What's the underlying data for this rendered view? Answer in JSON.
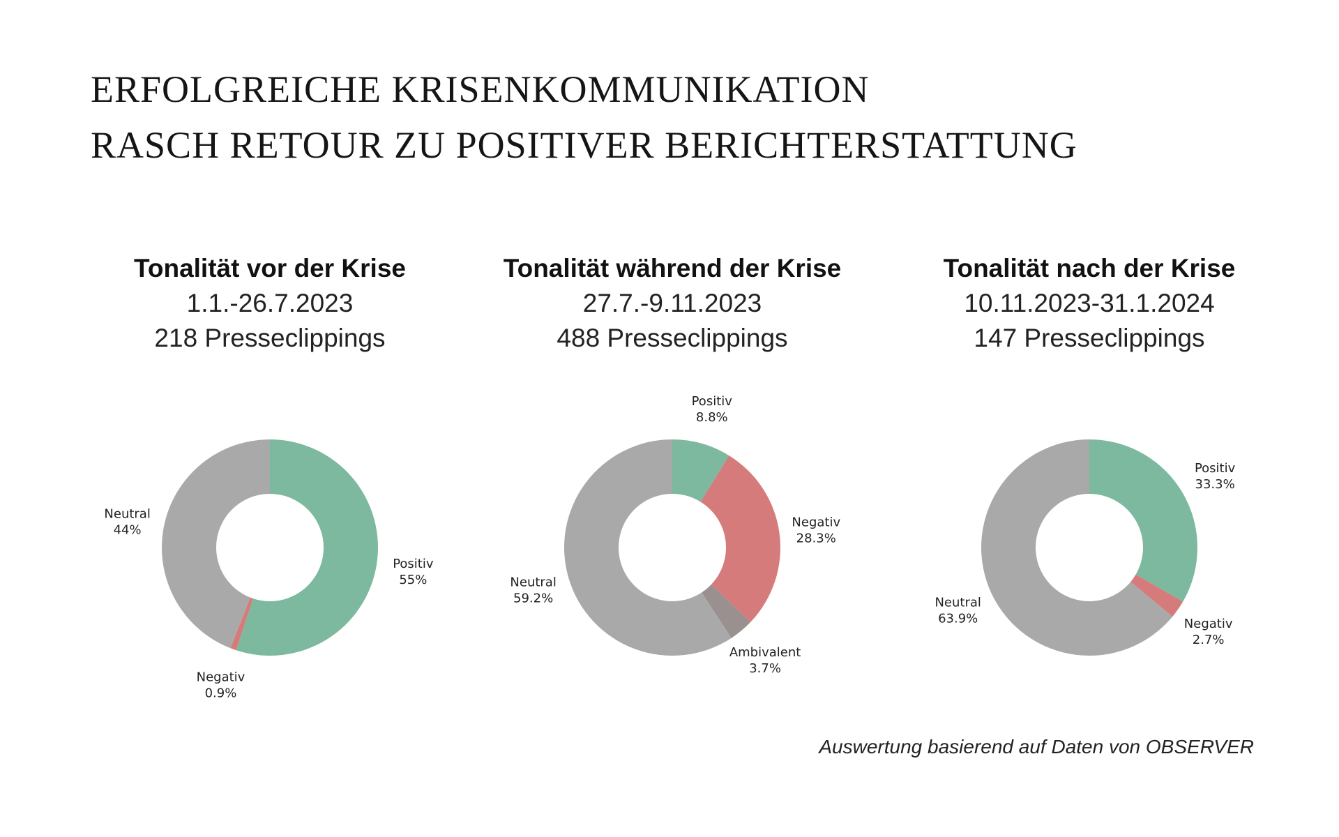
{
  "title": {
    "line1": "ERFOLGREICHE KRISENKOMMUNIKATION",
    "line2": "RASCH RETOUR ZU POSITIVER BERICHTERSTATTUNG"
  },
  "colors": {
    "Positiv": "#7db99e",
    "Negativ": "#d67b7b",
    "Neutral": "#a9a9a9",
    "Ambivalent": "#9a9090"
  },
  "chart_data": [
    {
      "type": "pie",
      "donut": true,
      "title": "Tonalität vor der Krise",
      "period": "1.1.-26.7.2023",
      "count": "218 Presseclippings",
      "slices": [
        {
          "label": "Positiv",
          "value": 55,
          "text": "55%"
        },
        {
          "label": "Negativ",
          "value": 0.9,
          "text": "0.9%"
        },
        {
          "label": "Neutral",
          "value": 44,
          "text": "44%"
        }
      ]
    },
    {
      "type": "pie",
      "donut": true,
      "title": "Tonalität während der Krise",
      "period": "27.7.-9.11.2023",
      "count": "488 Presseclippings",
      "slices": [
        {
          "label": "Positiv",
          "value": 8.8,
          "text": "8.8%"
        },
        {
          "label": "Negativ",
          "value": 28.3,
          "text": "28.3%"
        },
        {
          "label": "Ambivalent",
          "value": 3.7,
          "text": "3.7%"
        },
        {
          "label": "Neutral",
          "value": 59.2,
          "text": "59.2%"
        }
      ]
    },
    {
      "type": "pie",
      "donut": true,
      "title": "Tonalität nach der Krise",
      "period": "10.11.2023-31.1.2024",
      "count": "147 Presseclippings",
      "slices": [
        {
          "label": "Positiv",
          "value": 33.3,
          "text": "33.3%"
        },
        {
          "label": "Negativ",
          "value": 2.7,
          "text": "2.7%"
        },
        {
          "label": "Neutral",
          "value": 63.9,
          "text": "63.9%"
        }
      ]
    }
  ],
  "source_note": "Auswertung basierend auf Daten von OBSERVER"
}
